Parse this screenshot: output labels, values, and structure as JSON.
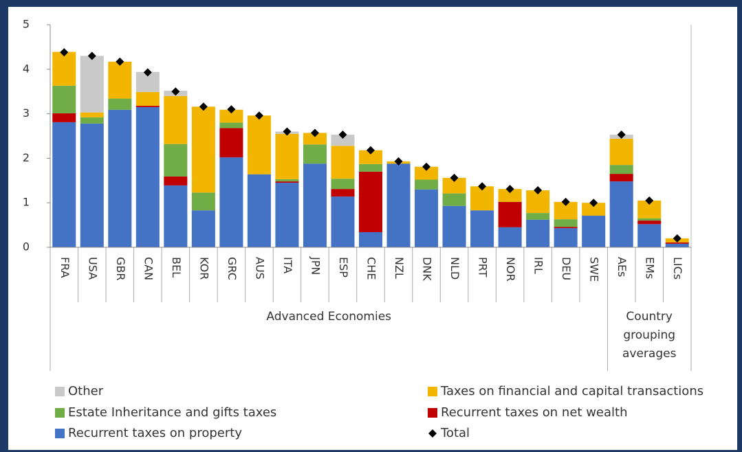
{
  "chart_data": {
    "type": "bar",
    "stacked": true,
    "groups": [
      {
        "label": "Advanced Economies",
        "categories": [
          "FRA",
          "USA",
          "GBR",
          "CAN",
          "BEL",
          "KOR",
          "GRC",
          "AUS",
          "ITA",
          "JPN",
          "ESP",
          "CHE",
          "NZL",
          "DNK",
          "NLD",
          "PRT",
          "NOR",
          "IRL",
          "DEU",
          "SWE"
        ]
      },
      {
        "label": "Country grouping averages",
        "categories": [
          "AEs",
          "EMs",
          "LICs"
        ]
      }
    ],
    "series": [
      {
        "name": "Recurrent taxes on property",
        "color": "#4472c4",
        "values": [
          2.81,
          2.78,
          3.09,
          3.15,
          1.39,
          0.83,
          2.02,
          1.64,
          1.45,
          1.88,
          1.14,
          0.34,
          1.88,
          1.3,
          0.93,
          0.83,
          0.45,
          0.62,
          0.43,
          0.71,
          1.48,
          0.52,
          0.08
        ]
      },
      {
        "name": "Recurrent taxes on net wealth",
        "color": "#c00000",
        "values": [
          0.2,
          0,
          0,
          0.03,
          0.2,
          0,
          0.66,
          0,
          0.03,
          0,
          0.17,
          1.36,
          0,
          0,
          0,
          0,
          0.57,
          0,
          0.03,
          0,
          0.17,
          0.08,
          0.03
        ]
      },
      {
        "name": "Estate Inheritance and gifts taxes",
        "color": "#70ad47",
        "values": [
          0.62,
          0.14,
          0.25,
          0,
          0.73,
          0.4,
          0.12,
          0,
          0.05,
          0.43,
          0.23,
          0.17,
          0,
          0.22,
          0.28,
          0,
          0,
          0.15,
          0.17,
          0,
          0.2,
          0.05,
          0
        ]
      },
      {
        "name": "Taxes on financial and capital transactions",
        "color": "#f2b600",
        "values": [
          0.76,
          0.11,
          0.83,
          0.31,
          1.08,
          1.93,
          0.29,
          1.32,
          1.02,
          0.26,
          0.74,
          0.31,
          0.05,
          0.29,
          0.35,
          0.54,
          0.29,
          0.51,
          0.39,
          0.29,
          0.59,
          0.4,
          0.09
        ]
      },
      {
        "name": "Other",
        "color": "#c9c9c9",
        "values": [
          0,
          1.27,
          0,
          0.45,
          0.12,
          0,
          0,
          0,
          0.05,
          0,
          0.25,
          0,
          0,
          0,
          0,
          0,
          0,
          0,
          0,
          0,
          0.09,
          0,
          0
        ]
      },
      {
        "name": "Total",
        "color": "#000000",
        "marker": "diamond",
        "values": [
          4.38,
          4.3,
          4.17,
          3.93,
          3.5,
          3.16,
          3.1,
          2.96,
          2.6,
          2.57,
          2.53,
          2.18,
          1.93,
          1.81,
          1.56,
          1.37,
          1.31,
          1.28,
          1.02,
          1.0,
          2.53,
          1.05,
          0.2
        ]
      }
    ],
    "ylim": [
      0,
      5
    ],
    "yticks": [
      0,
      1,
      2,
      3,
      4,
      5
    ],
    "grid": false
  }
}
